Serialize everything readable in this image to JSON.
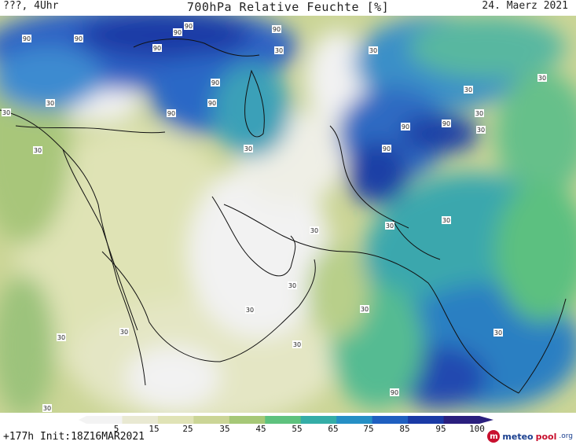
{
  "header": {
    "left": "???, 4Uhr",
    "title": "700hPa Relative Feuchte [%]",
    "right": "24. Maerz 2021"
  },
  "footer": {
    "left": "+177h Init:18Z16MAR2021",
    "brand_meteo": "meteo",
    "brand_pool": "pool",
    "brand_org": ".org"
  },
  "scale": {
    "labels": [
      "5",
      "15",
      "25",
      "35",
      "45",
      "55",
      "65",
      "75",
      "85",
      "95",
      "100"
    ],
    "colors": [
      "#f3f3f3",
      "#e9e9d2",
      "#e0e3b6",
      "#cbd596",
      "#a6c877",
      "#5ec27e",
      "#34ada7",
      "#258fc5",
      "#1f5fc0",
      "#1a3aa6",
      "#2a1f7e"
    ]
  },
  "contour_labels": [
    {
      "text": "90"
    },
    {
      "text": "90"
    },
    {
      "text": "90"
    },
    {
      "text": "90"
    },
    {
      "text": "90"
    },
    {
      "text": "90"
    },
    {
      "text": "90"
    },
    {
      "text": "90"
    },
    {
      "text": "90"
    },
    {
      "text": "90"
    },
    {
      "text": "90"
    },
    {
      "text": "90"
    },
    {
      "text": "90"
    },
    {
      "text": "30"
    },
    {
      "text": "30"
    },
    {
      "text": "30"
    },
    {
      "text": "30"
    },
    {
      "text": "30"
    },
    {
      "text": "30"
    },
    {
      "text": "30"
    },
    {
      "text": "30"
    },
    {
      "text": "30"
    },
    {
      "text": "30"
    },
    {
      "text": "30"
    },
    {
      "text": "30"
    },
    {
      "text": "30"
    },
    {
      "text": "30"
    },
    {
      "text": "30"
    },
    {
      "text": "30"
    },
    {
      "text": "30"
    },
    {
      "text": "30"
    },
    {
      "text": "30"
    },
    {
      "text": "30"
    },
    {
      "text": "30"
    }
  ]
}
